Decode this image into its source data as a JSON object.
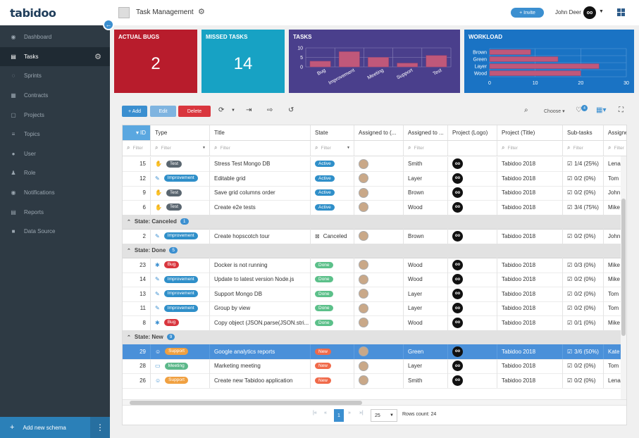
{
  "app": {
    "logo": "tabidoo",
    "title": "Task Management",
    "invite_label": "+ Invite",
    "user_name": "John Deer",
    "owl": "oo"
  },
  "sidebar": {
    "items": [
      {
        "label": "Dashboard",
        "icon": "dashboard-icon"
      },
      {
        "label": "Tasks",
        "icon": "tasks-icon"
      },
      {
        "label": "Sprints",
        "icon": "sprints-icon"
      },
      {
        "label": "Contracts",
        "icon": "contracts-icon"
      },
      {
        "label": "Projects",
        "icon": "projects-icon"
      },
      {
        "label": "Topics",
        "icon": "topics-icon"
      },
      {
        "label": "User",
        "icon": "user-icon"
      },
      {
        "label": "Role",
        "icon": "role-icon"
      },
      {
        "label": "Notifications",
        "icon": "notifications-icon"
      },
      {
        "label": "Reports",
        "icon": "reports-icon"
      },
      {
        "label": "Data Source",
        "icon": "data-source-icon"
      }
    ],
    "active": "Tasks",
    "add_schema": "Add new schema"
  },
  "cards": {
    "bugs": {
      "title": "Actual Bugs",
      "value": "2",
      "color": "#b81c2c"
    },
    "missed": {
      "title": "Missed Tasks",
      "value": "14",
      "color": "#17a2c4"
    },
    "tasks": {
      "title": "Tasks",
      "color": "#4a3f8c"
    },
    "workload": {
      "title": "Workload",
      "color": "#1a73c4"
    }
  },
  "chart_data": [
    {
      "type": "bar",
      "title": "TASKS",
      "categories": [
        "Bug",
        "Improvement",
        "Meeting",
        "Support",
        "Test"
      ],
      "values": [
        3,
        8,
        5,
        2,
        6
      ],
      "ylim": [
        0,
        10
      ],
      "yticks": [
        "10",
        "5",
        "0"
      ],
      "grid": true,
      "bar_color": "#c0587a"
    },
    {
      "type": "bar",
      "orientation": "horizontal",
      "title": "WORKLOAD",
      "categories": [
        "Brown",
        "Green",
        "Layer",
        "Wood"
      ],
      "values": [
        9,
        15,
        24,
        20
      ],
      "xlim": [
        0,
        30
      ],
      "xticks": [
        "0",
        "10",
        "20",
        "30"
      ],
      "grid": true,
      "bar_color": "#c0587a"
    }
  ],
  "toolbar": {
    "add": "+ Add",
    "edit": "Edit",
    "delete": "Delete",
    "choose": "Choose",
    "badge": "4"
  },
  "columns": [
    "ID",
    "Type",
    "Title",
    "State",
    "Assigned to (...",
    "Assigned to ...",
    "Project (Logo)",
    "Project (Title)",
    "Sub-tasks",
    "Assigne"
  ],
  "filter_placeholder": "Filter",
  "rows": [
    {
      "kind": "row",
      "id": "15",
      "type": "Test",
      "title": "Stress Test Mongo DB",
      "state": "Active",
      "assigned": "Smith",
      "project": "Tabidoo 2018",
      "sub": "1/4 (25%)",
      "assignee": "Lena"
    },
    {
      "kind": "row",
      "id": "12",
      "type": "Improvement",
      "title": "Editable grid",
      "state": "Active",
      "assigned": "Layer",
      "project": "Tabidoo 2018",
      "sub": "0/2 (0%)",
      "assignee": "Tom"
    },
    {
      "kind": "row",
      "id": "9",
      "type": "Test",
      "title": "Save grid columns order",
      "state": "Active",
      "assigned": "Brown",
      "project": "Tabidoo 2018",
      "sub": "0/2 (0%)",
      "assignee": "John"
    },
    {
      "kind": "row",
      "id": "6",
      "type": "Test",
      "title": "Create e2e tests",
      "state": "Active",
      "assigned": "Wood",
      "project": "Tabidoo 2018",
      "sub": "3/4 (75%)",
      "assignee": "Mike"
    },
    {
      "kind": "group",
      "label": "State: Canceled",
      "count": "1"
    },
    {
      "kind": "row",
      "id": "2",
      "type": "Improvement",
      "title": "Create hopscotch tour",
      "state": "Canceled",
      "assigned": "Brown",
      "project": "Tabidoo 2018",
      "sub": "0/2 (0%)",
      "assignee": "John"
    },
    {
      "kind": "group",
      "label": "State: Done",
      "count": "5"
    },
    {
      "kind": "row",
      "id": "23",
      "type": "Bug",
      "title": "Docker is not running",
      "state": "Done",
      "assigned": "Wood",
      "project": "Tabidoo 2018",
      "sub": "0/3 (0%)",
      "assignee": "Mike"
    },
    {
      "kind": "row",
      "id": "14",
      "type": "Improvement",
      "title": "Update to latest version Node.js",
      "state": "Done",
      "assigned": "Wood",
      "project": "Tabidoo 2018",
      "sub": "0/2 (0%)",
      "assignee": "Mike"
    },
    {
      "kind": "row",
      "id": "13",
      "type": "Improvement",
      "title": "Support Mongo DB",
      "state": "Done",
      "assigned": "Layer",
      "project": "Tabidoo 2018",
      "sub": "0/2 (0%)",
      "assignee": "Tom"
    },
    {
      "kind": "row",
      "id": "11",
      "type": "Improvement",
      "title": "Group by view",
      "state": "Done",
      "assigned": "Layer",
      "project": "Tabidoo 2018",
      "sub": "0/2 (0%)",
      "assignee": "Tom"
    },
    {
      "kind": "row",
      "id": "8",
      "type": "Bug",
      "title": "Copy object (JSON.parse(JSON.stri...",
      "state": "Done",
      "assigned": "Wood",
      "project": "Tabidoo 2018",
      "sub": "0/1 (0%)",
      "assignee": "Mike"
    },
    {
      "kind": "group",
      "label": "State: New",
      "count": "9"
    },
    {
      "kind": "row",
      "id": "29",
      "type": "Support",
      "title": "Google analytics reports",
      "state": "New",
      "assigned": "Green",
      "project": "Tabidoo 2018",
      "sub": "3/6 (50%)",
      "assignee": "Kate",
      "selected": true
    },
    {
      "kind": "row",
      "id": "28",
      "type": "Meeting",
      "title": "Marketing meeting",
      "state": "New",
      "assigned": "Layer",
      "project": "Tabidoo 2018",
      "sub": "0/2 (0%)",
      "assignee": "Tom"
    },
    {
      "kind": "row",
      "id": "26",
      "type": "Support",
      "title": "Create new Tabidoo application",
      "state": "New",
      "assigned": "Smith",
      "project": "Tabidoo 2018",
      "sub": "0/2 (0%)",
      "assignee": "Lena"
    }
  ],
  "type_colors": {
    "Test": "#5a6670",
    "Improvement": "#2f8fc9",
    "Bug": "#d9363e",
    "Support": "#f0a040",
    "Meeting": "#5cb88a"
  },
  "state_colors": {
    "Active": "#2f8fc9",
    "Done": "#5cc08a",
    "New": "#f06a4a"
  },
  "pager": {
    "page": "1",
    "page_size": "25",
    "rows_count": "Rows count: 24"
  }
}
